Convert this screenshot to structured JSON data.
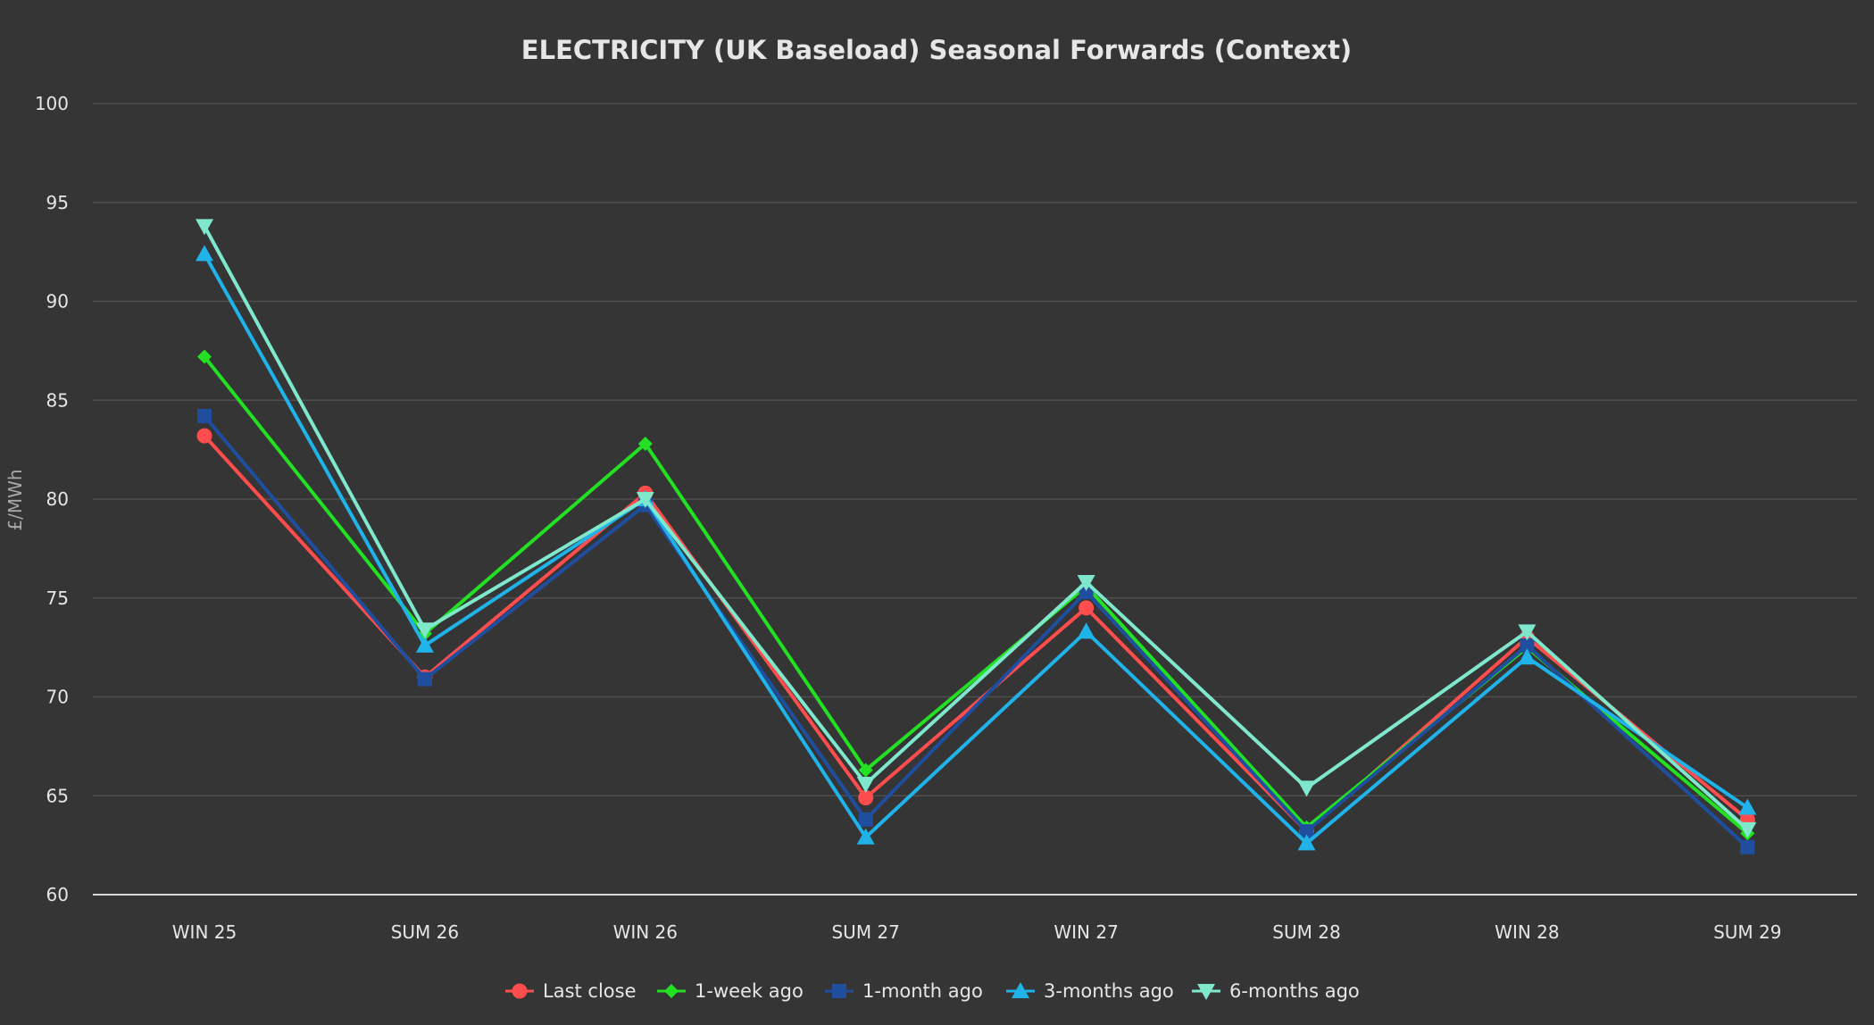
{
  "chart_data": {
    "type": "line",
    "title": "ELECTRICITY (UK Baseload) Seasonal Forwards (Context)",
    "xlabel": "",
    "ylabel": "£/MWh",
    "categories": [
      "WIN 25",
      "SUM 26",
      "WIN 26",
      "SUM 27",
      "WIN 27",
      "SUM 28",
      "WIN 28",
      "SUM 29"
    ],
    "ylim": [
      60,
      100
    ],
    "yticks": [
      60,
      65,
      70,
      75,
      80,
      85,
      90,
      95,
      100
    ],
    "grid": true,
    "legend_position": "bottom",
    "series": [
      {
        "name": "Last close",
        "color": "#ff4d4d",
        "marker": "circle",
        "values": [
          83.2,
          71.0,
          80.3,
          64.9,
          74.5,
          63.2,
          73.0,
          63.8
        ]
      },
      {
        "name": "1-week ago",
        "color": "#22e022",
        "marker": "diamond",
        "values": [
          87.2,
          73.2,
          82.8,
          66.3,
          75.6,
          63.4,
          72.5,
          63.1
        ]
      },
      {
        "name": "1-month ago",
        "color": "#1f4e9e",
        "marker": "square",
        "values": [
          84.2,
          70.9,
          79.7,
          63.8,
          75.3,
          63.2,
          72.6,
          62.4
        ]
      },
      {
        "name": "3-months ago",
        "color": "#1fb3ea",
        "marker": "triangle-up",
        "values": [
          92.4,
          72.6,
          80.0,
          62.9,
          73.3,
          62.6,
          72.0,
          64.4
        ]
      },
      {
        "name": "6-months ago",
        "color": "#7fe8cc",
        "marker": "triangle-down",
        "values": [
          93.8,
          73.4,
          80.0,
          65.6,
          75.8,
          65.4,
          73.3,
          63.3
        ]
      }
    ]
  }
}
